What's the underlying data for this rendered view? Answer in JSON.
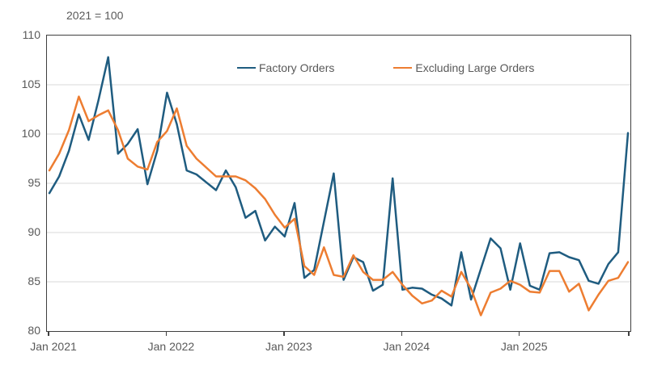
{
  "chart": {
    "title": "2021 = 100"
  },
  "chart_data": {
    "type": "line",
    "title": "2021 = 100",
    "frequency": "monthly",
    "x_tick_labels": [
      "Jan 2021",
      "Jan 2022",
      "Jan 2023",
      "Jan 2024",
      "Jan 2025"
    ],
    "x_tick_indices": [
      0,
      12,
      24,
      36,
      48
    ],
    "right_edge_tick": true,
    "y_ticks": [
      110,
      105,
      100,
      95,
      90,
      85,
      80
    ],
    "ylim": [
      80,
      110
    ],
    "gridlines": [
      85,
      90,
      95,
      100,
      105
    ],
    "grid_color": "#d9d9d9",
    "axis_color": "#3f3f3f",
    "text_color": "#595959",
    "legend_position": "top-inside",
    "series": [
      {
        "name": "Factory Orders",
        "color": "#1F5C80",
        "values": [
          94.0,
          95.7,
          98.3,
          102.0,
          99.4,
          103.4,
          107.8,
          98.0,
          99.0,
          100.5,
          94.9,
          98.3,
          104.2,
          101.0,
          96.3,
          95.9,
          95.1,
          94.3,
          96.3,
          94.6,
          91.5,
          92.2,
          89.2,
          90.6,
          89.6,
          93.0,
          85.4,
          86.2,
          91.1,
          96.0,
          85.2,
          87.5,
          87.0,
          84.1,
          84.7,
          95.5,
          84.2,
          84.4,
          84.3,
          83.7,
          83.3,
          82.6,
          88.0,
          83.2,
          86.3,
          89.4,
          88.4,
          84.2,
          88.9,
          84.6,
          84.2,
          87.9,
          88.0,
          87.5,
          87.2,
          85.1,
          84.8,
          86.8,
          88.0,
          100.1
        ]
      },
      {
        "name": "Excluding Large Orders",
        "color": "#ED7D31",
        "values": [
          96.3,
          98.0,
          100.4,
          103.8,
          101.3,
          101.9,
          102.4,
          100.4,
          97.5,
          96.7,
          96.4,
          99.2,
          100.3,
          102.6,
          98.8,
          97.5,
          96.6,
          95.7,
          95.7,
          95.7,
          95.3,
          94.5,
          93.4,
          91.8,
          90.5,
          91.4,
          86.6,
          85.7,
          88.5,
          85.7,
          85.5,
          87.7,
          86.0,
          85.2,
          85.2,
          86.0,
          84.7,
          83.6,
          82.8,
          83.1,
          84.1,
          83.5,
          86.0,
          84.3,
          81.6,
          83.9,
          84.3,
          85.1,
          84.7,
          84.0,
          83.9,
          86.1,
          86.1,
          84.0,
          84.8,
          82.1,
          83.7,
          85.1,
          85.4,
          87.0
        ]
      }
    ]
  }
}
